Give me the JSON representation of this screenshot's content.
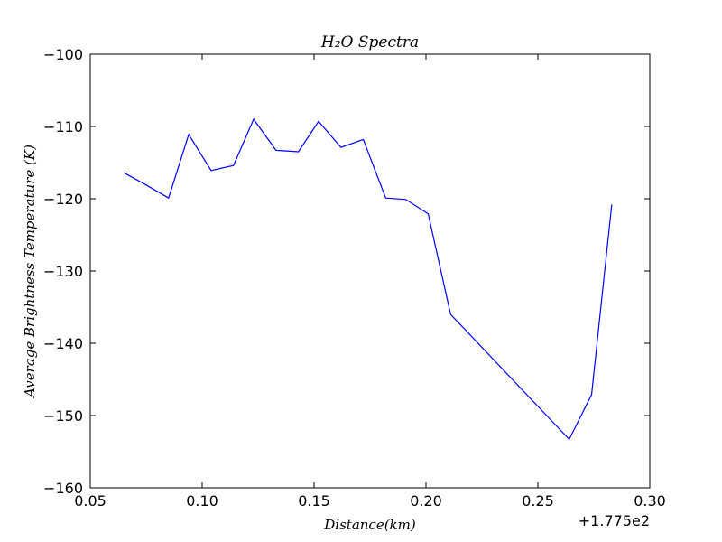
{
  "chart_data": {
    "type": "line",
    "title": "H₂O Spectra",
    "x_label": "Distance(km)",
    "y_label": "Average Brightness Temperature (K)",
    "x_offset_label": "+1.775e2",
    "x": [
      0.065,
      0.075,
      0.085,
      0.094,
      0.104,
      0.114,
      0.123,
      0.133,
      0.143,
      0.152,
      0.162,
      0.172,
      0.182,
      0.191,
      0.201,
      0.211,
      0.264,
      0.274,
      0.283
    ],
    "series": [
      {
        "name": "H2O",
        "color": "#0000ff",
        "values": [
          -116.4,
          -118.1,
          -119.9,
          -111.1,
          -116.1,
          -115.4,
          -109.0,
          -113.3,
          -113.5,
          -109.3,
          -112.9,
          -111.8,
          -119.9,
          -120.1,
          -122.1,
          -136.0,
          -153.3,
          -147.1,
          -120.8
        ]
      }
    ],
    "xlim": [
      0.05,
      0.3
    ],
    "xticks": [
      {
        "value": 0.05,
        "label": "0.05"
      },
      {
        "value": 0.1,
        "label": "0.10"
      },
      {
        "value": 0.15,
        "label": "0.15"
      },
      {
        "value": 0.2,
        "label": "0.20"
      },
      {
        "value": 0.25,
        "label": "0.25"
      },
      {
        "value": 0.3,
        "label": "0.30"
      }
    ],
    "ylim": [
      -160,
      -100
    ],
    "yticks": [
      {
        "value": -160,
        "label": "−160"
      },
      {
        "value": -150,
        "label": "−150"
      },
      {
        "value": -140,
        "label": "−140"
      },
      {
        "value": -130,
        "label": "−130"
      },
      {
        "value": -120,
        "label": "−120"
      },
      {
        "value": -110,
        "label": "−110"
      },
      {
        "value": -100,
        "label": "−100"
      }
    ]
  }
}
